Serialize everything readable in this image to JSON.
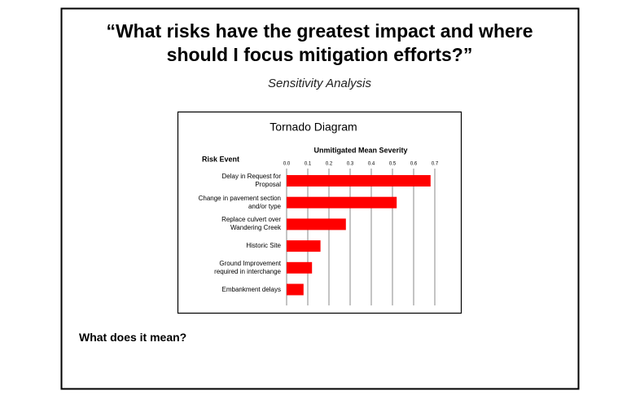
{
  "title": "“What risks have the greatest impact and where\nshould I focus mitigation efforts?”",
  "subtitle": "Sensitivity Analysis",
  "note": "What does it mean?",
  "chart_data": {
    "type": "bar",
    "orientation": "horizontal",
    "title": "Tornado Diagram",
    "x_label": "Unmitigated Mean Severity",
    "y_label": "Risk Event",
    "categories": [
      "Delay in Request for\nProposal",
      "Change in pavement section\nand/or type",
      "Replace culvert over\nWandering Creek",
      "Historic Site",
      "Ground Improvement\nrequired in interchange",
      "Embankment delays"
    ],
    "values": [
      0.68,
      0.52,
      0.28,
      0.16,
      0.12,
      0.08
    ],
    "color": "#ff0000",
    "xlim": [
      0,
      0.7
    ],
    "xticks": [
      {
        "value": 0,
        "label": "0.0"
      },
      0.1,
      0.2,
      0.3,
      0.4,
      0.5,
      0.6,
      0.7
    ],
    "grid": true
  }
}
